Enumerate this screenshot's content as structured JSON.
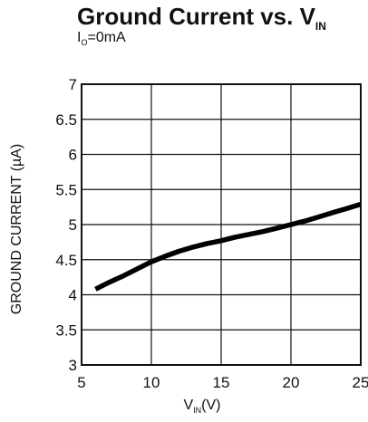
{
  "chart_data": {
    "type": "line",
    "title": {
      "main": "Ground Current vs. V",
      "sub": "IN"
    },
    "subtitle": {
      "main": "I",
      "sub": "O",
      "suffix": "=0mA"
    },
    "xlabel": {
      "main": "V",
      "sub": "IN",
      "suffix": "(V)"
    },
    "ylabel": "GROUND CURRENT (µA)",
    "xlim": [
      5,
      25
    ],
    "ylim": [
      3,
      7
    ],
    "x_ticks": [
      "5",
      "10",
      "15",
      "20",
      "25"
    ],
    "y_ticks": [
      "3",
      "3.5",
      "4",
      "4.5",
      "5",
      "5.5",
      "6",
      "6.5",
      "7"
    ],
    "grid": true,
    "series": [
      {
        "color": "#000000",
        "points": [
          [
            6,
            4.08
          ],
          [
            7,
            4.18
          ],
          [
            8,
            4.27
          ],
          [
            9,
            4.37
          ],
          [
            10,
            4.47
          ],
          [
            11,
            4.55
          ],
          [
            12,
            4.62
          ],
          [
            13,
            4.68
          ],
          [
            14,
            4.73
          ],
          [
            15,
            4.77
          ],
          [
            16,
            4.82
          ],
          [
            17,
            4.86
          ],
          [
            18,
            4.9
          ],
          [
            19,
            4.95
          ],
          [
            20,
            5.0
          ],
          [
            21,
            5.05
          ],
          [
            22,
            5.11
          ],
          [
            23,
            5.17
          ],
          [
            24,
            5.23
          ],
          [
            25,
            5.29
          ]
        ]
      }
    ]
  }
}
